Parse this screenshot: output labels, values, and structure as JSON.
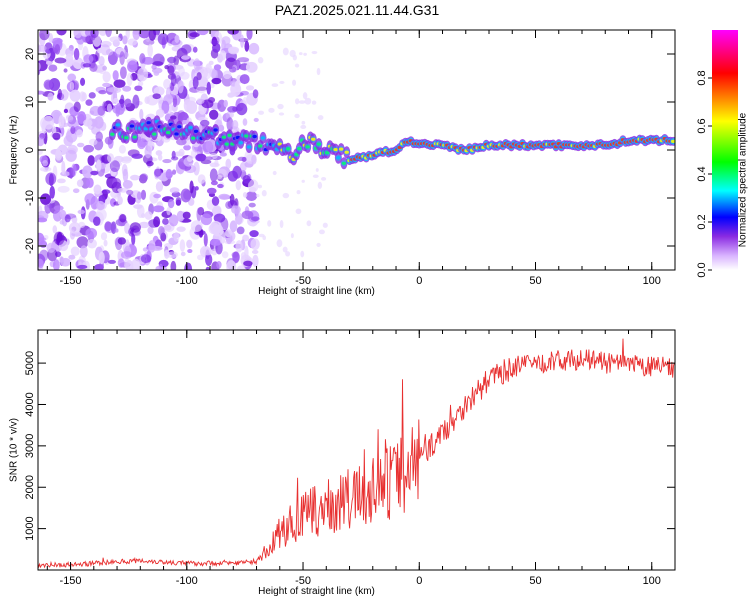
{
  "title": "PAZ1.2025.021.11.44.G31",
  "chart_data": [
    {
      "type": "heatmap",
      "xlabel": "Height of straight line (km)",
      "ylabel": "Frequency (Hz)",
      "xlim": [
        -164,
        110
      ],
      "ylim": [
        -25,
        25
      ],
      "xticks": [
        -150,
        -100,
        -50,
        0,
        50,
        100
      ],
      "yticks": [
        -20,
        -10,
        0,
        10,
        20
      ],
      "colorbar": {
        "label": "Normalized spectral amplitude",
        "range": [
          0,
          1
        ],
        "ticks": [
          0.0,
          0.2,
          0.4,
          0.6,
          0.8
        ],
        "colormap": [
          "#ffffff",
          "#d9b3ff",
          "#8a2be2",
          "#0000ff",
          "#00ffff",
          "#00ff00",
          "#ffff00",
          "#ff0000",
          "#ff00ff"
        ]
      },
      "ridge": {
        "x": [
          -130,
          -120,
          -110,
          -90,
          -75,
          -65,
          -55,
          -48,
          -40,
          -30,
          -20,
          -10,
          -5,
          0,
          10,
          20,
          30,
          40,
          50,
          60,
          70,
          80,
          90,
          100,
          110
        ],
        "y": [
          4,
          4,
          5,
          3,
          2,
          1,
          -1,
          2,
          0,
          -2,
          -1,
          0,
          2,
          1,
          1,
          0,
          1,
          1,
          1,
          1,
          1,
          1,
          2,
          2,
          2
        ]
      },
      "noise_region_x": [
        -164,
        -70
      ]
    },
    {
      "type": "line",
      "xlabel": "Height of straight line (km)",
      "ylabel": "SNR (10 * v/v)",
      "xlim": [
        -164,
        110
      ],
      "ylim": [
        0,
        5800
      ],
      "xticks": [
        -150,
        -100,
        -50,
        0,
        50,
        100
      ],
      "yticks": [
        1000,
        2000,
        3000,
        4000,
        5000
      ],
      "line_color": "#e83030",
      "series": [
        {
          "x": [
            -164,
            -150,
            -130,
            -120,
            -100,
            -80,
            -70,
            -65,
            -60,
            -50,
            -40,
            -30,
            -20,
            -10,
            0,
            10,
            20,
            30,
            40,
            50,
            60,
            70,
            80,
            90,
            100,
            110
          ],
          "y": [
            130,
            120,
            200,
            230,
            160,
            170,
            200,
            500,
            900,
            1300,
            1500,
            1700,
            1900,
            2200,
            2700,
            3300,
            4000,
            4600,
            4900,
            5000,
            5050,
            5100,
            5000,
            4950,
            4900,
            4900
          ]
        }
      ]
    }
  ]
}
